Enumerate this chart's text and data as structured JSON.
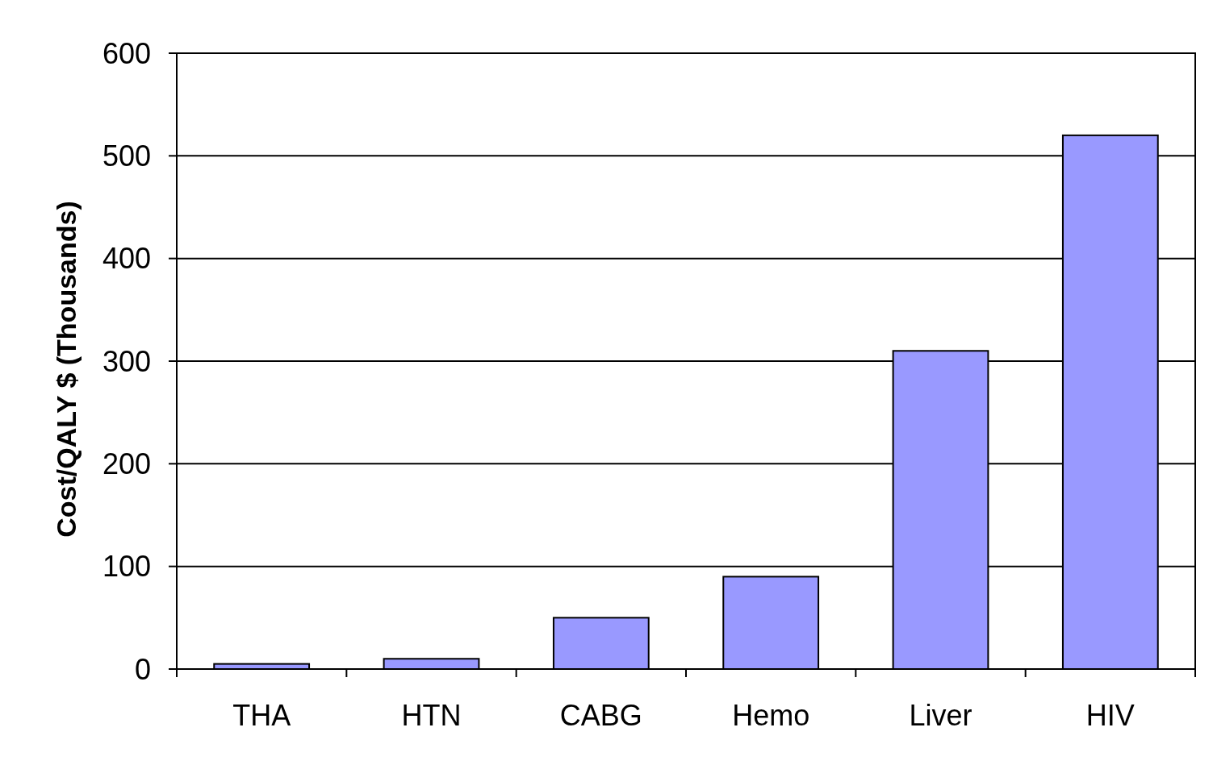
{
  "chart_data": {
    "type": "bar",
    "ylabel": "Cost/QALY $ (Thousands)",
    "categories": [
      "THA",
      "HTN",
      "CABG",
      "Hemo",
      "Liver",
      "HIV"
    ],
    "values": [
      5,
      10,
      50,
      90,
      310,
      520
    ],
    "color": "#9999ff",
    "ylim": [
      0,
      600
    ],
    "yticks": [
      0,
      100,
      200,
      300,
      400,
      500,
      600
    ],
    "grid": "y"
  }
}
